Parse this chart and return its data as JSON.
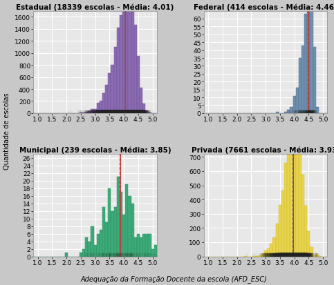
{
  "subplots": [
    {
      "title": "Estadual (18339 escolas - Média: 4.01)",
      "mean": 4.01,
      "color": "#8B6BB1",
      "edge_color": "#6A4A90",
      "n_schools": 18339,
      "ylim": [
        0,
        1700
      ],
      "yticks": [
        0,
        200,
        400,
        600,
        800,
        1000,
        1200,
        1400,
        1600
      ],
      "dist_mean": 4.01,
      "dist_std": 0.55,
      "skew": -3
    },
    {
      "title": "Federal (414 escolas - Média: 4.46)",
      "mean": 4.46,
      "color": "#7090B0",
      "edge_color": "#4A6A8A",
      "n_schools": 414,
      "ylim": [
        0,
        65
      ],
      "yticks": [
        0,
        5,
        10,
        15,
        20,
        25,
        30,
        35,
        40,
        45,
        50,
        55,
        60
      ],
      "dist_mean": 4.46,
      "dist_std": 0.3,
      "skew": -6
    },
    {
      "title": "Municipal (239 escolas - Média: 3.85)",
      "mean": 3.85,
      "color": "#3DAA7A",
      "edge_color": "#2A8A5A",
      "n_schools": 239,
      "ylim": [
        0,
        27
      ],
      "yticks": [
        0,
        2,
        4,
        6,
        8,
        10,
        12,
        14,
        16,
        18,
        20,
        22,
        24,
        26
      ],
      "dist_mean": 3.85,
      "dist_std": 0.65,
      "skew": -0.3
    },
    {
      "title": "Privada (7661 escolas - Média: 3.93)",
      "mean": 3.93,
      "color": "#E8D44D",
      "edge_color": "#C8B42D",
      "n_schools": 7661,
      "ylim": [
        0,
        720
      ],
      "yticks": [
        0,
        100,
        200,
        300,
        400,
        500,
        600,
        700
      ],
      "dist_mean": 3.93,
      "dist_std": 0.46,
      "skew": -2
    }
  ],
  "xlabel": "Adequação da Formação Docente da escola (AFD_ESC)",
  "ylabel": "Quantidade de escolas",
  "xlim": [
    0.85,
    5.15
  ],
  "xticks": [
    1.0,
    1.5,
    2.0,
    2.5,
    3.0,
    3.5,
    4.0,
    4.5,
    5.0
  ],
  "bin_width": 0.1,
  "bg_color": "#E8E8E8",
  "grid_color": "#FFFFFF",
  "mean_line_color": "#CC3333",
  "dashed_line_color": "#666666",
  "title_fontsize": 7.5,
  "label_fontsize": 7,
  "tick_fontsize": 6.5
}
